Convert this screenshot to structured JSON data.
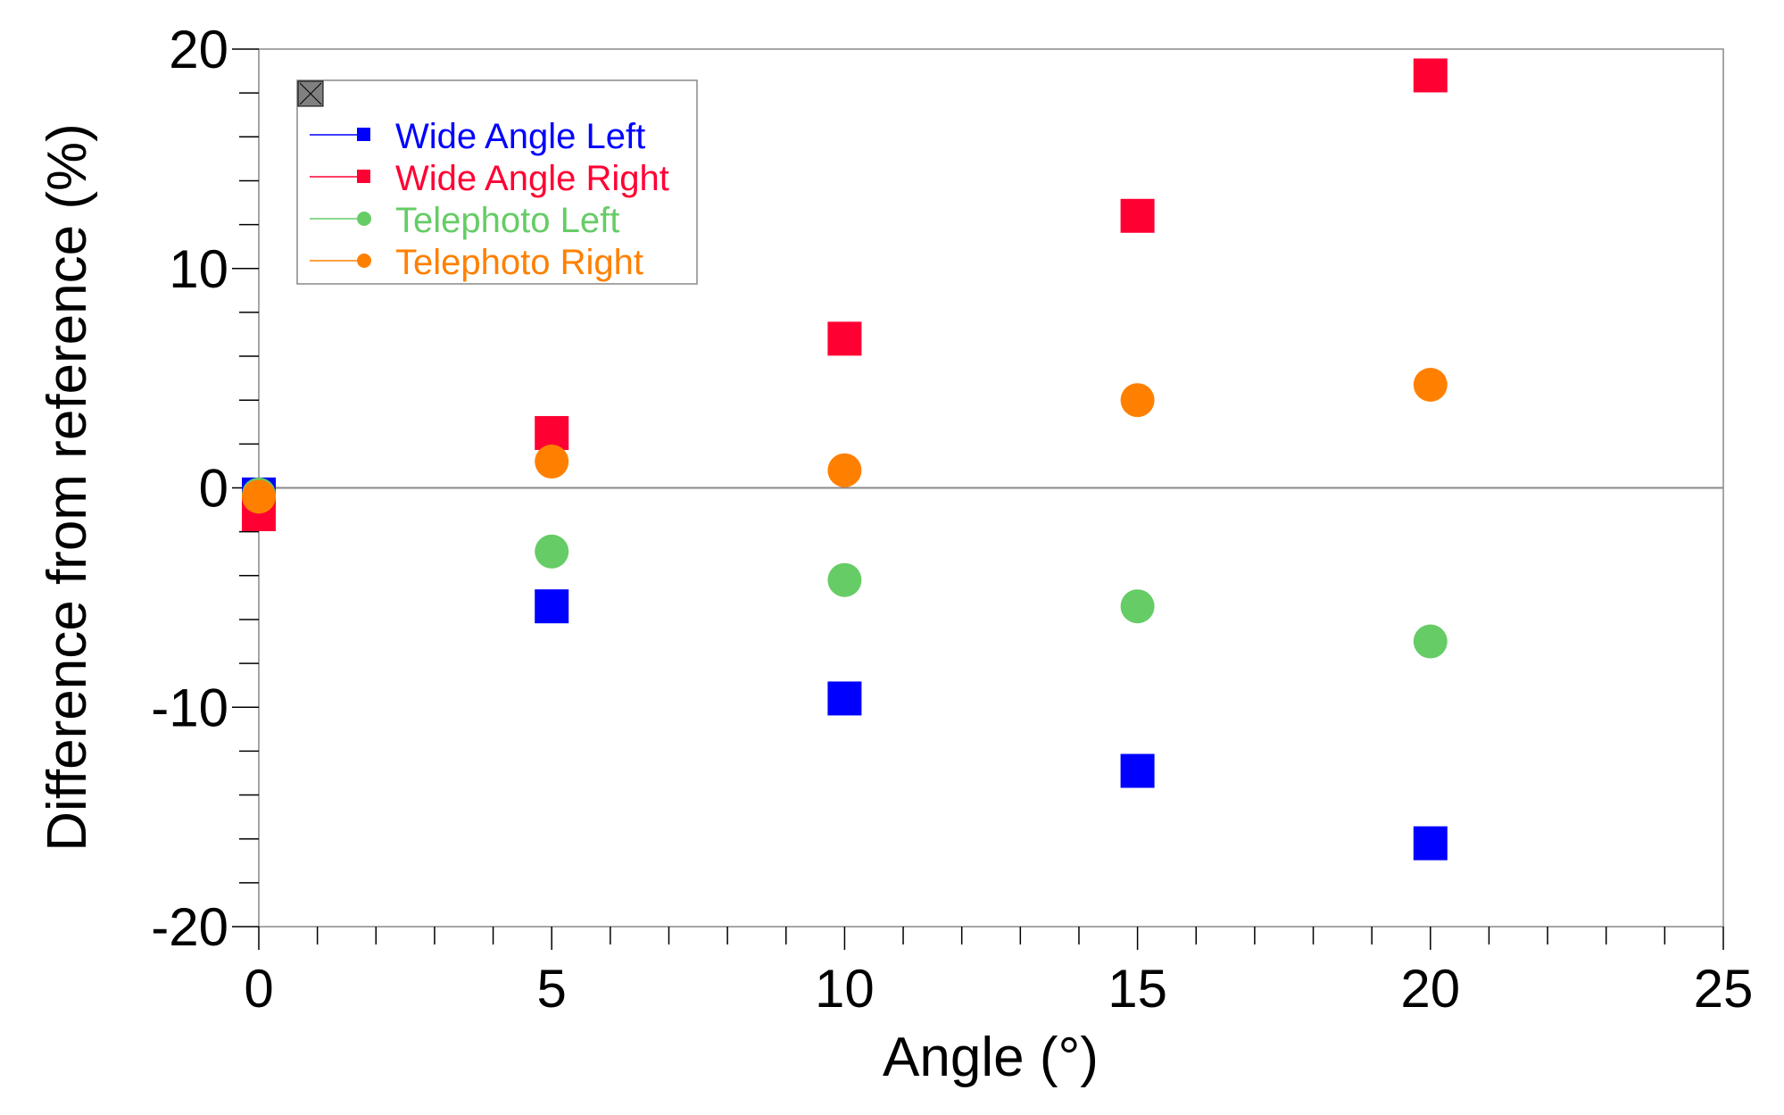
{
  "chart_data": {
    "type": "scatter",
    "title": "",
    "xlabel": "Angle (°)",
    "ylabel": "Difference from reference (%)",
    "xlim": [
      0,
      25
    ],
    "ylim": [
      -20,
      20
    ],
    "xticks": [
      "0",
      "5",
      "10",
      "15",
      "20",
      "25"
    ],
    "yticks": [
      "20",
      "10",
      "0",
      "-10",
      "-20"
    ],
    "grid": false,
    "zero_line": true,
    "legend_position": "top-left",
    "x": [
      0,
      5,
      10,
      15,
      20
    ],
    "series": [
      {
        "name": "Wide Angle Left",
        "color": "#0000ff",
        "marker": "square",
        "values": [
          -0.3,
          -5.4,
          -9.6,
          -12.9,
          -16.2
        ]
      },
      {
        "name": "Wide Angle Right",
        "color": "#ff0033",
        "marker": "square",
        "values": [
          -1.2,
          2.5,
          6.8,
          12.4,
          18.8
        ]
      },
      {
        "name": "Telephoto Left",
        "color": "#66cc66",
        "marker": "circle",
        "values": [
          -0.3,
          -2.9,
          -4.2,
          -5.4,
          -7.0
        ]
      },
      {
        "name": "Telephoto Right",
        "color": "#ff8000",
        "marker": "circle",
        "values": [
          -0.4,
          1.2,
          0.8,
          4.0,
          4.7
        ]
      }
    ]
  }
}
